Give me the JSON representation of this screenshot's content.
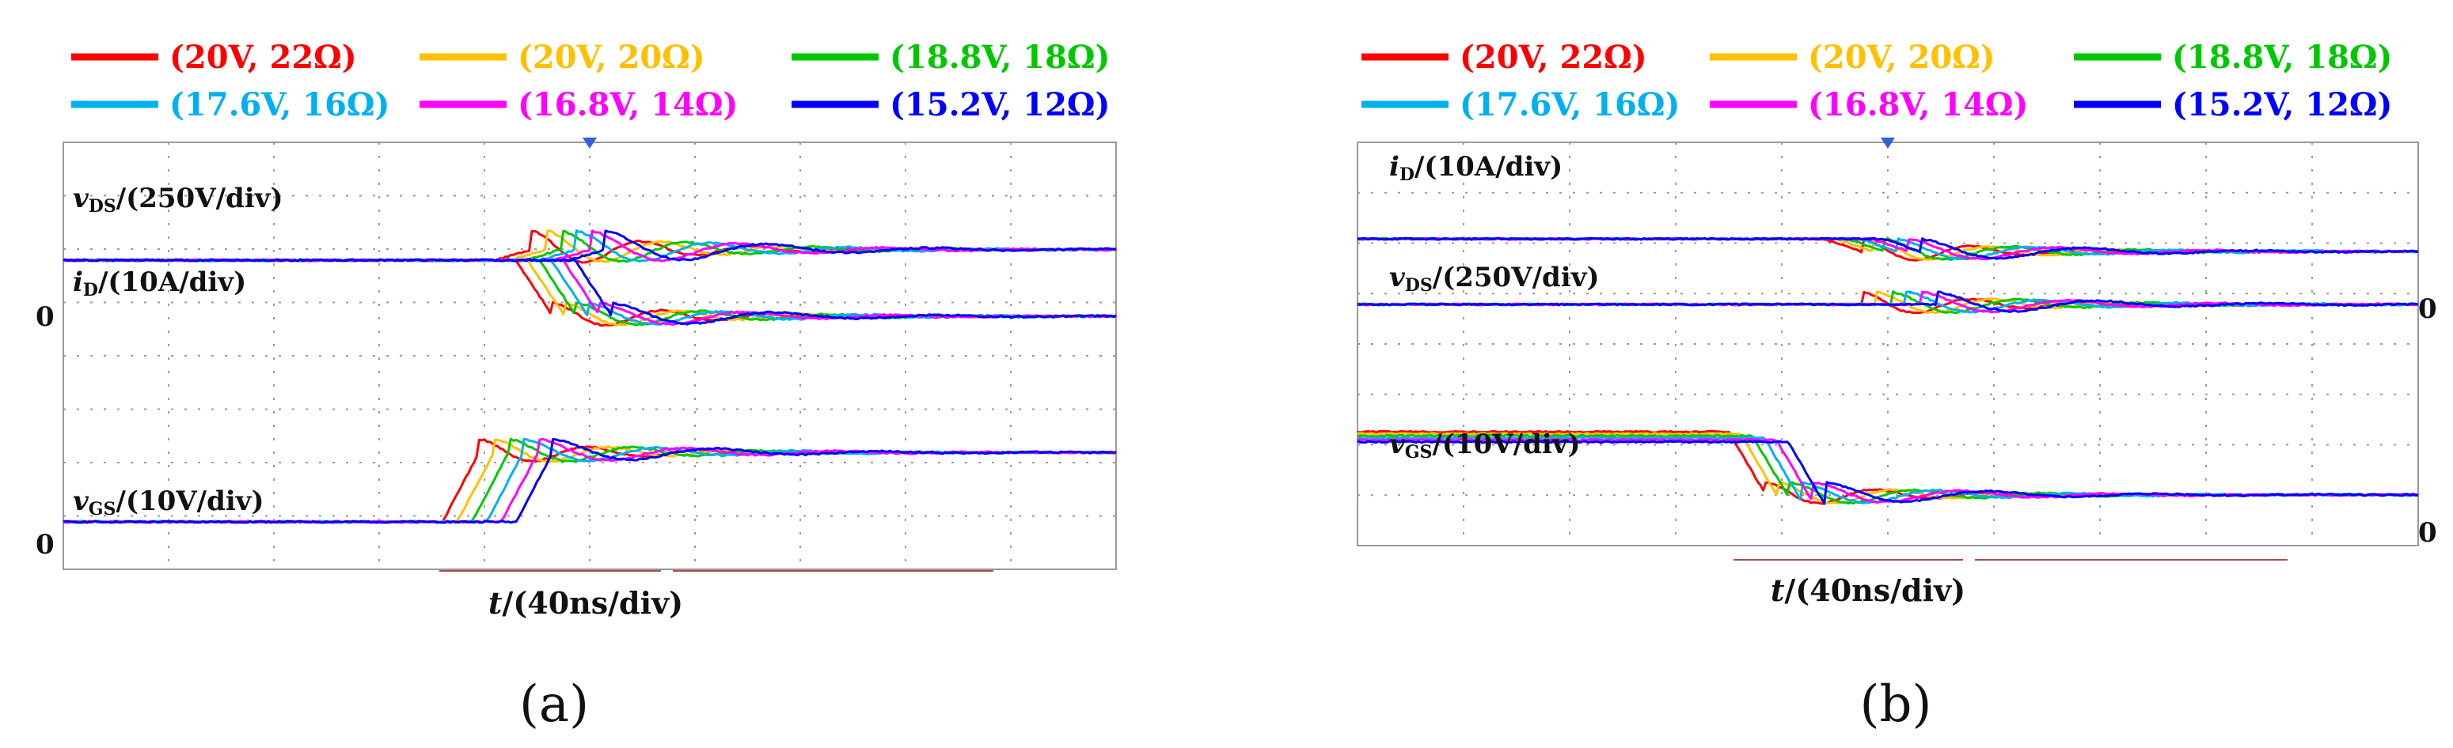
{
  "chart_data": [
    {
      "type": "line",
      "panel_label": "(a)",
      "x_label_var": "t",
      "x_label_unit": "/(40ns/div)",
      "x": [
        0,
        1,
        2,
        3,
        4,
        5,
        6,
        7,
        8,
        9,
        10
      ],
      "zero_marker": "0",
      "legend_entries": [
        {
          "label": "(20V, 22Ω)",
          "color": "#ff0000"
        },
        {
          "label": "(20V, 20Ω)",
          "color": "#ffc000"
        },
        {
          "label": "(18.8V, 18Ω)",
          "color": "#00c800"
        },
        {
          "label": "(17.6V, 16Ω)",
          "color": "#00b0f0"
        },
        {
          "label": "(16.8V, 14Ω)",
          "color": "#ff00ff"
        },
        {
          "label": "(15.2V, 12Ω)",
          "color": "#0000ff"
        }
      ],
      "channels": [
        {
          "var": "v",
          "sub": "DS",
          "unit": "/(250V/div)",
          "level_before": 1.05,
          "level_after": 1.25,
          "overshoot": 1.6,
          "transition_div": 4.1,
          "direction": "rise",
          "zero_offset": 1.0
        },
        {
          "var": "i",
          "sub": "D",
          "unit": "/(10A/div)",
          "level_before": 1.05,
          "level_after": 0.0,
          "transition_div": 4.3,
          "direction": "fall",
          "zero_offset": 1.0
        },
        {
          "var": "v",
          "sub": "GS",
          "unit": "/(10V/div)",
          "level_before": 0.0,
          "level_after": 1.3,
          "overshoot": 1.55,
          "transition_div": 3.6,
          "direction": "rise",
          "zero_offset": 0.0
        }
      ]
    },
    {
      "type": "line",
      "panel_label": "(b)",
      "x_label_var": "t",
      "x_label_unit": "/(40ns/div)",
      "x": [
        0,
        1,
        2,
        3,
        4,
        5,
        6,
        7,
        8,
        9,
        10
      ],
      "zero_marker": "0",
      "legend_entries": [
        {
          "label": "(20V, 22Ω)",
          "color": "#ff0000"
        },
        {
          "label": "(20V, 20Ω)",
          "color": "#ffc000"
        },
        {
          "label": "(18.8V, 18Ω)",
          "color": "#00c800"
        },
        {
          "label": "(17.6V, 16Ω)",
          "color": "#00b0f0"
        },
        {
          "label": "(16.8V, 14Ω)",
          "color": "#ff00ff"
        },
        {
          "label": "(15.2V, 12Ω)",
          "color": "#0000ff"
        }
      ],
      "channels": [
        {
          "var": "i",
          "sub": "D",
          "unit": "/(10A/div)",
          "level_before": 1.3,
          "level_after": 1.05,
          "transition_div": 4.4,
          "direction": "fall",
          "zero_offset": 1.0
        },
        {
          "var": "v",
          "sub": "DS",
          "unit": "/(250V/div)",
          "level_before": 0.0,
          "level_after": 0.0,
          "transition_div": 4.4,
          "direction": "rise",
          "zero_offset": 1.0
        },
        {
          "var": "v",
          "sub": "GS",
          "unit": "/(10V/div)",
          "level_before": 1.55,
          "level_after": 0.3,
          "transition_div": 3.5,
          "direction": "fall",
          "zero_offset": 0.0
        }
      ]
    }
  ]
}
